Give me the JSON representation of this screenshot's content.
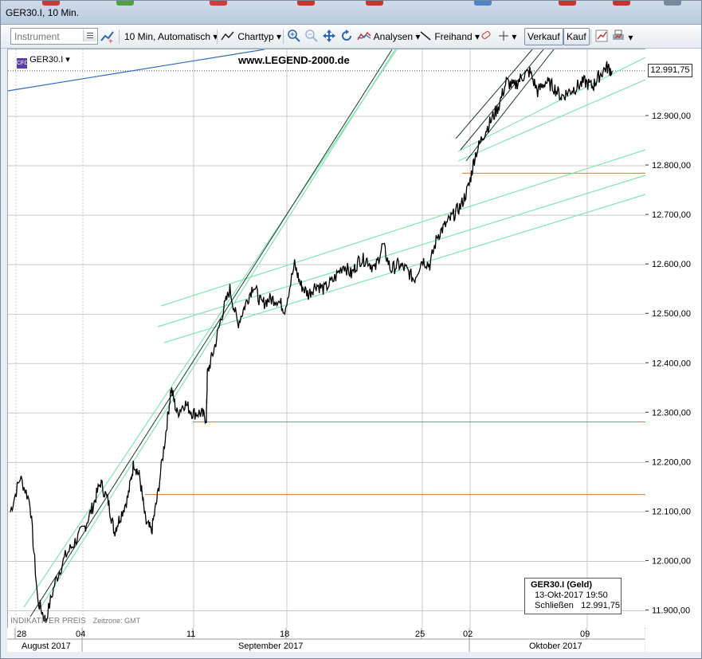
{
  "window": {
    "title": "GER30.I, 10 Min."
  },
  "toolbar": {
    "instrument_placeholder": "Instrument",
    "interval_label": "10 Min, Automatisch",
    "charttype_label": "Charttyp",
    "analysen_label": "Analysen",
    "freihand_label": "Freihand",
    "verkauf_label": "Verkauf",
    "kauf_label": "Kauf"
  },
  "chart": {
    "symbol": "GER30.I",
    "watermark": "www.LEGEND-2000.de",
    "footer_left": "INDIKATIVER PREIS",
    "footer_tz": "Zeitzone: GMT",
    "last_price": "12.991,75"
  },
  "tooltip": {
    "title": "GER30.I (Geld)",
    "datetime": "13-Okt-2017 19:50",
    "close_label": "Schließen",
    "close_value": "12.991,75"
  },
  "colors": {
    "price_line": "#000000",
    "channel_light": "#7fe6b0",
    "channel_dark": "#1a3d2c",
    "support_lines": "#e07a2a",
    "blue_line": "#2c6cc0",
    "grid": "#c8c8c8"
  },
  "chart_data": {
    "type": "line",
    "title": "GER30.I, 10 Min.",
    "xlabel": "",
    "ylabel": "",
    "ylim": [
      11880,
      13060
    ],
    "y_ticks": [
      "12.900,00",
      "12.800,00",
      "12.700,00",
      "12.600,00",
      "12.500,00",
      "12.400,00",
      "12.300,00",
      "12.200,00",
      "12.100,00",
      "12.000,00",
      "11.900,00"
    ],
    "y_tick_values": [
      12900,
      12800,
      12700,
      12600,
      12500,
      12400,
      12300,
      12200,
      12100,
      12000,
      11900
    ],
    "x_day_labels": [
      "28",
      "04",
      "11",
      "18",
      "25",
      "02",
      "09"
    ],
    "x_month_labels": [
      "August 2017",
      "September 2017",
      "Oktober 2017"
    ],
    "horizontal_levels": [
      12785,
      12282,
      12135
    ],
    "series": [
      {
        "values": [
          [
            0,
            12100
          ],
          [
            0.5,
            12170
          ],
          [
            1,
            12120
          ],
          [
            1.4,
            11920
          ],
          [
            1.8,
            11880
          ],
          [
            2.3,
            11960
          ],
          [
            2.8,
            12010
          ],
          [
            3.3,
            12040
          ],
          [
            3.8,
            12070
          ],
          [
            4.2,
            12110
          ],
          [
            4.6,
            12160
          ],
          [
            5.0,
            12120
          ],
          [
            5.3,
            12060
          ],
          [
            5.6,
            12090
          ],
          [
            6.0,
            12130
          ],
          [
            6.3,
            12200
          ],
          [
            6.6,
            12170
          ],
          [
            6.9,
            12080
          ],
          [
            7.2,
            12060
          ],
          [
            7.5,
            12130
          ],
          [
            7.9,
            12250
          ],
          [
            8.2,
            12350
          ],
          [
            8.5,
            12300
          ],
          [
            8.9,
            12320
          ],
          [
            9.3,
            12300
          ],
          [
            9.7,
            12300
          ],
          [
            10.0,
            12290
          ],
          [
            10.05,
            12380
          ],
          [
            10.4,
            12430
          ],
          [
            10.8,
            12500
          ],
          [
            11.2,
            12550
          ],
          [
            11.6,
            12480
          ],
          [
            12.0,
            12520
          ],
          [
            12.4,
            12560
          ],
          [
            12.8,
            12520
          ],
          [
            13.2,
            12530
          ],
          [
            13.6,
            12530
          ],
          [
            14.0,
            12510
          ],
          [
            14.5,
            12600
          ],
          [
            14.8,
            12560
          ],
          [
            15.2,
            12540
          ],
          [
            15.6,
            12560
          ],
          [
            16.0,
            12550
          ],
          [
            16.5,
            12570
          ],
          [
            17.0,
            12600
          ],
          [
            17.4,
            12580
          ],
          [
            17.8,
            12610
          ],
          [
            18.2,
            12610
          ],
          [
            18.6,
            12590
          ],
          [
            19.0,
            12640
          ],
          [
            19.4,
            12590
          ],
          [
            19.8,
            12600
          ],
          [
            20.2,
            12590
          ],
          [
            20.6,
            12570
          ],
          [
            21.0,
            12610
          ],
          [
            21.4,
            12600
          ],
          [
            21.8,
            12660
          ],
          [
            22.2,
            12680
          ],
          [
            22.6,
            12700
          ],
          [
            23.0,
            12720
          ],
          [
            23.4,
            12760
          ],
          [
            23.7,
            12820
          ],
          [
            24.1,
            12860
          ],
          [
            24.5,
            12890
          ],
          [
            24.9,
            12920
          ],
          [
            25.3,
            12970
          ],
          [
            25.7,
            12960
          ],
          [
            26.1,
            12980
          ],
          [
            26.5,
            12990
          ],
          [
            26.9,
            12950
          ],
          [
            27.3,
            12970
          ],
          [
            27.7,
            12960
          ],
          [
            28.1,
            12940
          ],
          [
            28.5,
            12950
          ],
          [
            28.9,
            12960
          ],
          [
            29.3,
            12970
          ],
          [
            29.7,
            12960
          ],
          [
            30.0,
            12980
          ],
          [
            30.4,
            13000
          ],
          [
            30.7,
            12992
          ]
        ]
      }
    ]
  }
}
